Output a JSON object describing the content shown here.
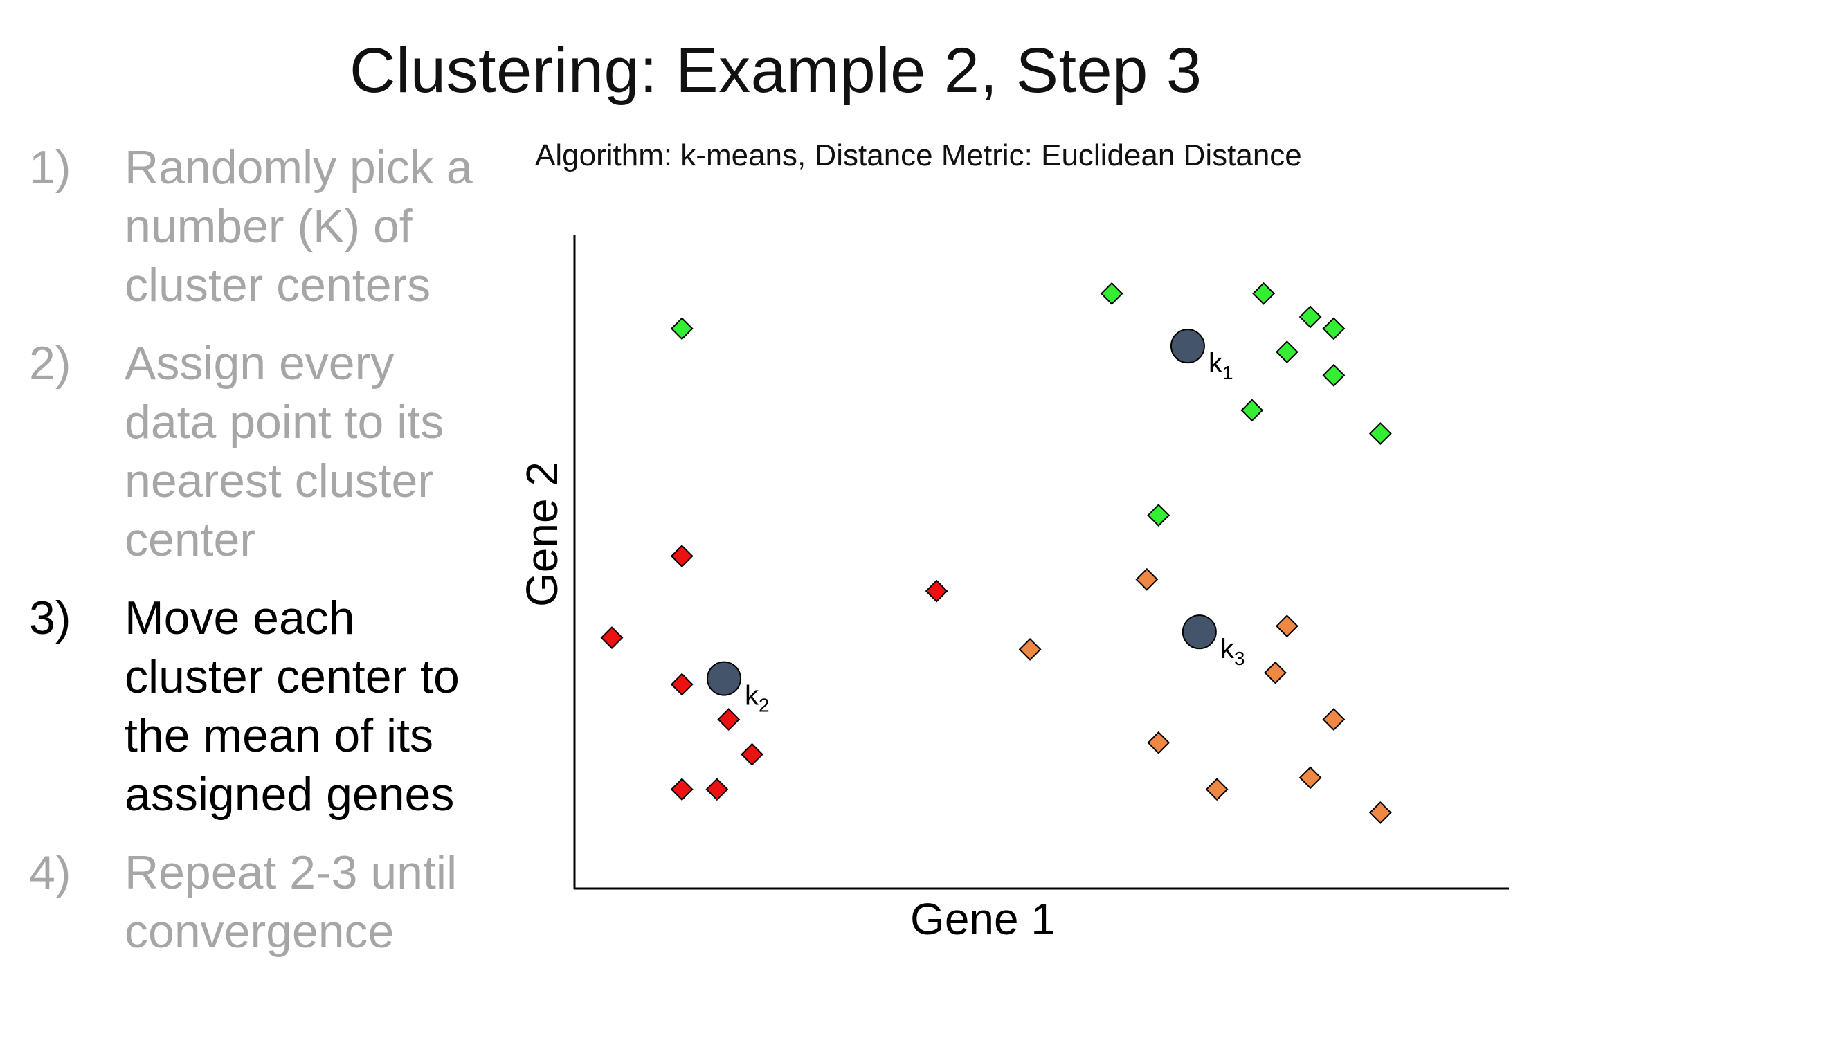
{
  "title": "Clustering: Example 2, Step 3",
  "subtitle": "Algorithm: k-means, Distance Metric: Euclidean Distance",
  "steps": [
    {
      "num": "1)",
      "lines": [
        "Randomly pick a",
        "number (K) of",
        "cluster centers"
      ],
      "active": false
    },
    {
      "num": "2)",
      "lines": [
        "Assign every",
        "data point to its",
        "nearest cluster",
        "center"
      ],
      "active": false
    },
    {
      "num": "3)",
      "lines": [
        "Move each",
        "cluster center to",
        "the mean of its",
        "assigned genes"
      ],
      "active": true
    },
    {
      "num": "4)",
      "lines": [
        "Repeat 2-3 until",
        "convergence"
      ],
      "active": false
    }
  ],
  "chart_data": {
    "type": "scatter",
    "xlabel": "Gene 1",
    "ylabel": "Gene 2",
    "xlim": [
      0,
      8
    ],
    "ylim": [
      0,
      5.6
    ],
    "grid": false,
    "colors": {
      "green": "#33ee33",
      "red": "#ee1111",
      "orange": "#ee8844",
      "centroid": "#44546a"
    },
    "series": [
      {
        "cluster": "k1",
        "color": "green",
        "marker": "diamond",
        "x": [
          0.92,
          4.6,
          5.9,
          6.1,
          6.5,
          6.3,
          6.5,
          5.8,
          6.9,
          5.0
        ],
        "y": [
          4.8,
          5.1,
          5.1,
          4.6,
          4.8,
          4.9,
          4.4,
          4.1,
          3.9,
          3.2
        ]
      },
      {
        "cluster": "k2",
        "color": "red",
        "marker": "diamond",
        "x": [
          0.92,
          0.32,
          0.92,
          1.32,
          1.52,
          0.92,
          1.22,
          3.1
        ],
        "y": [
          2.85,
          2.15,
          1.75,
          1.45,
          1.15,
          0.85,
          0.85,
          2.55
        ]
      },
      {
        "cluster": "k3",
        "color": "orange",
        "marker": "diamond",
        "x": [
          4.9,
          3.9,
          6.1,
          6.0,
          6.5,
          5.0,
          5.5,
          6.3,
          6.9
        ],
        "y": [
          2.65,
          2.05,
          2.25,
          1.85,
          1.45,
          1.25,
          0.85,
          0.95,
          0.65
        ]
      }
    ],
    "centroids": [
      {
        "label": "k",
        "sub": "1",
        "x": 5.25,
        "y": 4.65
      },
      {
        "label": "k",
        "sub": "2",
        "x": 1.28,
        "y": 1.8
      },
      {
        "label": "k",
        "sub": "3",
        "x": 5.35,
        "y": 2.2
      }
    ]
  }
}
